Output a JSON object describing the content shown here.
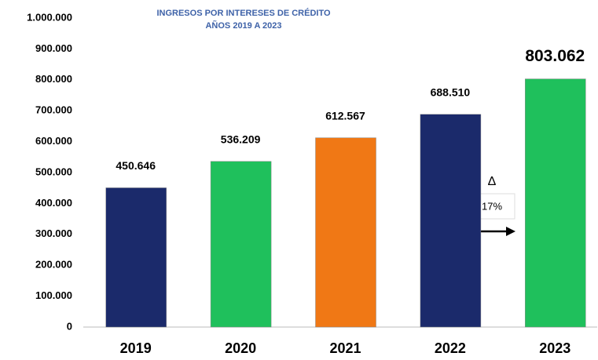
{
  "chart_data": {
    "type": "bar",
    "title": "INGRESOS POR INTERESES DE CRÉDITO",
    "subtitle": "AÑOS 2019 A 2023",
    "categories": [
      "2019",
      "2020",
      "2021",
      "2022",
      "2023"
    ],
    "values": [
      450646,
      536209,
      612567,
      688510,
      803062
    ],
    "value_labels": [
      "450.646",
      "536.209",
      "612.567",
      "688.510",
      "803.062"
    ],
    "colors": [
      "#1b2a6b",
      "#1fc05c",
      "#f07815",
      "#1b2a6b",
      "#1fc05c"
    ],
    "ylim": [
      0,
      1000000
    ],
    "yticks": [
      0,
      {
        "value": 100000,
        "label": "100.000"
      },
      {
        "value": 200000,
        "label": "200.000"
      },
      {
        "value": 300000,
        "label": "300.000"
      },
      {
        "value": 400000,
        "label": "400.000"
      },
      {
        "value": 500000,
        "label": "500.000"
      },
      {
        "value": 600000,
        "label": "600.000"
      },
      {
        "value": 700000,
        "label": "700.000"
      },
      {
        "value": 800000,
        "label": "800.000"
      },
      {
        "value": 900000,
        "label": "900.000"
      },
      {
        "value": 1000000,
        "label": "1.000.000"
      }
    ],
    "grid": false,
    "annotations": [
      "Δ",
      "17%"
    ]
  }
}
